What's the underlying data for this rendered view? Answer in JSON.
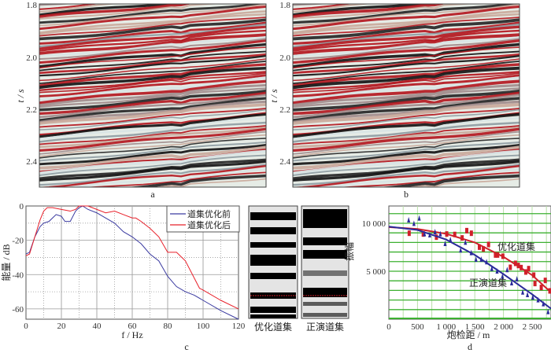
{
  "panels": {
    "a": {
      "label": "a",
      "ylabel": "t / s",
      "yticks": [
        "1.8",
        "2.0",
        "2.2",
        "2.4"
      ]
    },
    "b": {
      "label": "b",
      "ylabel": "t / s",
      "yticks": [
        "1.8",
        "2.0",
        "2.2",
        "2.4"
      ]
    },
    "gathers": {
      "left_label": "优化道集",
      "right_label": "正演道集",
      "marker_color": "#d0202a"
    }
  },
  "chart_data": [
    {
      "type": "line",
      "panel_label": "c",
      "xlabel": "f / Hz",
      "ylabel": "能量 / dB",
      "xlim": [
        0,
        120
      ],
      "ylim": [
        -66,
        0
      ],
      "xticks": [
        0,
        20,
        40,
        60,
        80,
        100,
        120
      ],
      "yticks": [
        0,
        -20,
        -40,
        -60
      ],
      "grid": true,
      "legend": "top-right",
      "series": [
        {
          "name": "道集优化前",
          "color": "#3a3aa0",
          "x": [
            0,
            2,
            5,
            8,
            10,
            13,
            15,
            17,
            20,
            22,
            25,
            28,
            30,
            32,
            35,
            40,
            45,
            50,
            55,
            60,
            65,
            70,
            75,
            80,
            85,
            90,
            95,
            100,
            110,
            120
          ],
          "y": [
            -28,
            -27,
            -18,
            -12,
            -10,
            -9,
            -7,
            -5,
            -6,
            -9,
            -9,
            -3,
            -1,
            0,
            -2,
            -4,
            -7,
            -10,
            -15,
            -18,
            -22,
            -28,
            -32,
            -41,
            -47,
            -50,
            -52,
            -55,
            -61,
            -66
          ]
        },
        {
          "name": "道集优化后",
          "color": "#e8202a",
          "x": [
            0,
            2,
            5,
            8,
            10,
            12,
            15,
            20,
            25,
            28,
            30,
            32,
            35,
            40,
            45,
            50,
            55,
            60,
            62,
            65,
            70,
            75,
            80,
            85,
            90,
            95,
            98,
            100,
            110,
            120
          ],
          "y": [
            -29,
            -28,
            -18,
            -8,
            -3,
            -1,
            -1,
            -2,
            -3,
            -2,
            0,
            0,
            0,
            -2,
            -4,
            -3,
            -5,
            -7,
            -7,
            -9,
            -13,
            -18,
            -27,
            -27,
            -32,
            -42,
            -48,
            -49,
            -55,
            -60
          ]
        }
      ]
    },
    {
      "type": "scatter",
      "panel_label": "d",
      "xlabel": "炮检距 / m",
      "ylabel": "振幅",
      "xlim": [
        0,
        2830
      ],
      "ylim": [
        0,
        11800
      ],
      "xticks": [
        {
          "v": 0,
          "t": "0"
        },
        {
          "v": 500,
          "t": "500"
        },
        {
          "v": 1000,
          "t": "1 000"
        },
        {
          "v": 1500,
          "t": "1 500"
        },
        {
          "v": 2000,
          "t": "2 000"
        },
        {
          "v": 2500,
          "t": "2 500"
        }
      ],
      "yticks": [
        {
          "v": 5000,
          "t": "5 000"
        },
        {
          "v": 10000,
          "t": "10 000"
        }
      ],
      "grid": true,
      "series": [
        {
          "name": "优化道集",
          "color": "#d0202a",
          "marker": "square",
          "points": [
            [
              355,
              8960
            ],
            [
              600,
              8880
            ],
            [
              830,
              8550
            ],
            [
              1010,
              8880
            ],
            [
              1150,
              8830
            ],
            [
              1280,
              8470
            ],
            [
              1360,
              9230
            ],
            [
              1440,
              8960
            ],
            [
              1580,
              7510
            ],
            [
              1650,
              7320
            ],
            [
              1740,
              7790
            ],
            [
              1860,
              6690
            ],
            [
              1900,
              6690
            ],
            [
              1990,
              6560
            ],
            [
              2120,
              5410
            ],
            [
              2210,
              5820
            ],
            [
              2260,
              5600
            ],
            [
              2310,
              5380
            ],
            [
              2390,
              4920
            ],
            [
              2440,
              5270
            ],
            [
              2530,
              4590
            ],
            [
              2550,
              3720
            ],
            [
              2660,
              3310
            ],
            [
              2730,
              4040
            ],
            [
              2810,
              2950
            ]
          ],
          "fit": [
            [
              0,
              9600
            ],
            [
              500,
              9400
            ],
            [
              1000,
              8900
            ],
            [
              1500,
              8000
            ],
            [
              2000,
              6500
            ],
            [
              2500,
              4600
            ],
            [
              2830,
              2800
            ]
          ]
        },
        {
          "name": "正演道集",
          "color": "#2a2a9a",
          "marker": "triangle",
          "points": [
            [
              346,
              10330
            ],
            [
              438,
              9970
            ],
            [
              530,
              10520
            ],
            [
              622,
              8880
            ],
            [
              714,
              8770
            ],
            [
              806,
              9100
            ],
            [
              899,
              8880
            ],
            [
              982,
              7870
            ],
            [
              1074,
              8280
            ],
            [
              1253,
              7190
            ],
            [
              1336,
              8000
            ],
            [
              1438,
              6910
            ],
            [
              1521,
              6230
            ],
            [
              1613,
              6230
            ],
            [
              1705,
              5960
            ],
            [
              1797,
              5270
            ],
            [
              1889,
              5000
            ],
            [
              1982,
              4450
            ],
            [
              2065,
              5140
            ],
            [
              2143,
              3770
            ],
            [
              2235,
              4180
            ],
            [
              2336,
              2810
            ],
            [
              2419,
              2540
            ],
            [
              2512,
              2270
            ],
            [
              2604,
              2000
            ],
            [
              2696,
              1590
            ],
            [
              2779,
              770
            ]
          ],
          "fit": [
            [
              0,
              9650
            ],
            [
              500,
              9300
            ],
            [
              1000,
              8300
            ],
            [
              1500,
              6700
            ],
            [
              2000,
              4700
            ],
            [
              2500,
              2600
            ],
            [
              2830,
              1100
            ]
          ]
        }
      ]
    }
  ]
}
